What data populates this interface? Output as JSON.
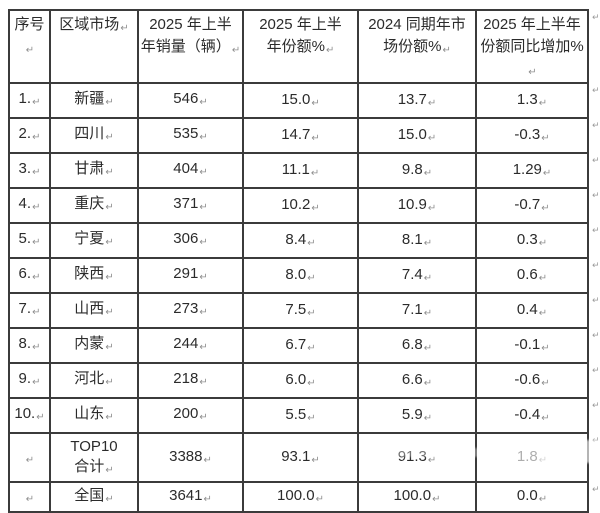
{
  "page": {
    "background": "#ffffff",
    "colors": {
      "border": "#3b3b3b",
      "text": "#2b2b2b",
      "formatting_mark": "#8f8f8f"
    }
  },
  "marks": {
    "cell_end": "↵",
    "row_end": "↵"
  },
  "table": {
    "headers": [
      "序号",
      "区域市场",
      "2025 年上半\n年销量（辆）",
      "2025 年上半\n年份额%",
      "2024 同期年市\n场份额%",
      "2025 年上半年\n份额同比增加%"
    ],
    "rows": [
      [
        "1.",
        "新疆",
        "546",
        "15.0",
        "13.7",
        "1.3"
      ],
      [
        "2.",
        "四川",
        "535",
        "14.7",
        "15.0",
        "-0.3"
      ],
      [
        "3.",
        "甘肃",
        "404",
        "11.1",
        "9.8",
        "1.29"
      ],
      [
        "4.",
        "重庆",
        "371",
        "10.2",
        "10.9",
        "-0.7"
      ],
      [
        "5.",
        "宁夏",
        "306",
        "8.4",
        "8.1",
        "0.3"
      ],
      [
        "6.",
        "陕西",
        "291",
        "8.0",
        "7.4",
        "0.6"
      ],
      [
        "7.",
        "山西",
        "273",
        "7.5",
        "7.1",
        "0.4"
      ],
      [
        "8.",
        "内蒙",
        "244",
        "6.7",
        "6.8",
        "-0.1"
      ],
      [
        "9.",
        "河北",
        "218",
        "6.0",
        "6.6",
        "-0.6"
      ],
      [
        "10.",
        "山东",
        "200",
        "5.5",
        "5.9",
        "-0.4"
      ],
      [
        "",
        "TOP10\n合计",
        "3388",
        "93.1",
        "91.3",
        "1.8"
      ],
      [
        "",
        "全国",
        "3641",
        "100.0",
        "100.0",
        "0.0"
      ]
    ]
  }
}
